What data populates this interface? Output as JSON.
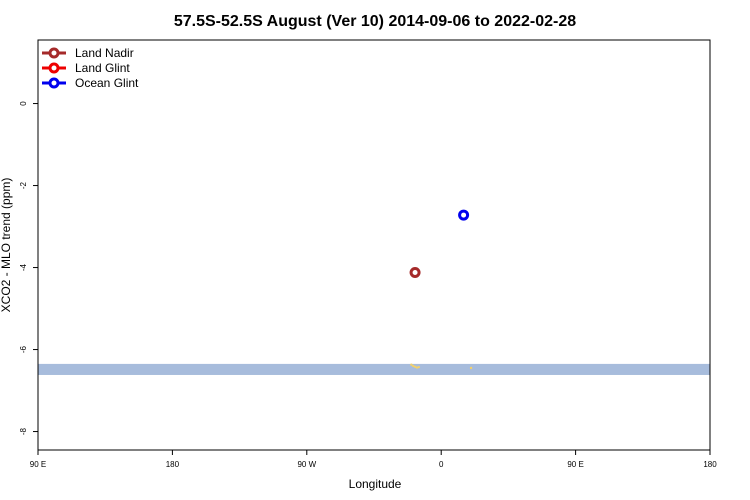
{
  "chart_data": {
    "type": "scatter",
    "title": "57.5S-52.5S August (Ver 10)   2014-09-06 to 2022-02-28",
    "xlabel": "Longitude",
    "ylabel": "XCO2 - MLO trend (ppm)",
    "xlim": [
      90,
      450
    ],
    "ylim": [
      -8.45,
      1.55
    ],
    "x_ticks": [
      {
        "value": 90,
        "label": "90 E"
      },
      {
        "value": 180,
        "label": "180"
      },
      {
        "value": 270,
        "label": "90 W"
      },
      {
        "value": 360,
        "label": "0"
      },
      {
        "value": 450,
        "label": "90 E"
      },
      {
        "value": 540,
        "label": "180"
      }
    ],
    "y_ticks": [
      {
        "value": 0,
        "label": "0"
      },
      {
        "value": -2,
        "label": "-2"
      },
      {
        "value": -4,
        "label": "-4"
      },
      {
        "value": -6,
        "label": "-6"
      },
      {
        "value": -8,
        "label": "-8"
      }
    ],
    "series": [
      {
        "name": "Land Nadir",
        "color": "#a52a2a",
        "points": [
          {
            "x": 292,
            "y": -4.12
          }
        ]
      },
      {
        "name": "Land Glint",
        "color": "#ee0000",
        "points": []
      },
      {
        "name": "Ocean Glint",
        "color": "#0000ee",
        "points": [
          {
            "x": 318,
            "y": -2.72
          }
        ]
      }
    ],
    "legend_position": "top-left",
    "land_band": {
      "color": "#a7bcdc",
      "y_from": -6.35,
      "y_to": -6.62
    },
    "land_marks": {
      "color": "#f2d16b",
      "x": [
        290,
        291,
        292,
        293,
        294,
        322
      ],
      "y": [
        -6.37,
        -6.4,
        -6.42,
        -6.44,
        -6.43,
        -6.45
      ]
    }
  }
}
